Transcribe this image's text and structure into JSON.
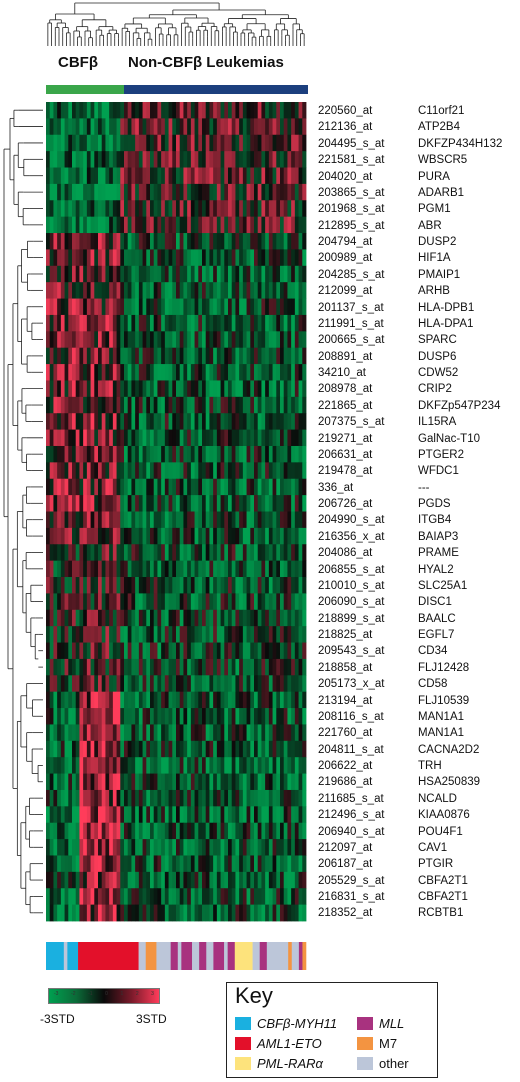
{
  "header": {
    "group_left": "CBFβ",
    "group_right": "Non-CBFβ Leukemias"
  },
  "colors": {
    "green": "#00a050",
    "red": "#ff3c5a",
    "black": "#0a0a0a",
    "group_bar_green": "#3aa64a",
    "group_bar_blue": "#1c3f7e",
    "cbfb_myh11": "#1ab0e0",
    "aml1_eto": "#e3102a",
    "pml_rara": "#fde37c",
    "mll": "#a8327f",
    "m7": "#f39441",
    "other": "#bcc6d9"
  },
  "rows": [
    {
      "probe": "220560_at",
      "gene": "C11orf21",
      "pattern": "up_noncbf"
    },
    {
      "probe": "212136_at",
      "gene": "ATP2B4",
      "pattern": "up_noncbf"
    },
    {
      "probe": "204495_s_at",
      "gene": "DKFZP434H132",
      "pattern": "up_noncbf"
    },
    {
      "probe": "221581_s_at",
      "gene": "WBSCR5",
      "pattern": "up_noncbf"
    },
    {
      "probe": "204020_at",
      "gene": "PURA",
      "pattern": "up_noncbf"
    },
    {
      "probe": "203865_s_at",
      "gene": "ADARB1",
      "pattern": "up_noncbf"
    },
    {
      "probe": "201968_s_at",
      "gene": "PGM1",
      "pattern": "up_noncbf"
    },
    {
      "probe": "212895_s_at",
      "gene": "ABR",
      "pattern": "up_noncbf"
    },
    {
      "probe": "204794_at",
      "gene": "DUSP2",
      "pattern": "up_cbf"
    },
    {
      "probe": "200989_at",
      "gene": "HIF1A",
      "pattern": "up_cbf"
    },
    {
      "probe": "204285_s_at",
      "gene": "PMAIP1",
      "pattern": "up_cbf"
    },
    {
      "probe": "212099_at",
      "gene": "ARHB",
      "pattern": "up_cbf"
    },
    {
      "probe": "201137_s_at",
      "gene": "HLA-DPB1",
      "pattern": "up_cbf"
    },
    {
      "probe": "211991_s_at",
      "gene": "HLA-DPA1",
      "pattern": "up_cbf"
    },
    {
      "probe": "200665_s_at",
      "gene": "SPARC",
      "pattern": "up_cbf"
    },
    {
      "probe": "208891_at",
      "gene": "DUSP6",
      "pattern": "up_cbf"
    },
    {
      "probe": "34210_at",
      "gene": "CDW52",
      "pattern": "up_cbf"
    },
    {
      "probe": "208978_at",
      "gene": "CRIP2",
      "pattern": "up_cbf"
    },
    {
      "probe": "221865_at",
      "gene": "DKFZp547P234",
      "pattern": "up_cbf"
    },
    {
      "probe": "207375_s_at",
      "gene": "IL15RA",
      "pattern": "up_cbf"
    },
    {
      "probe": "219271_at",
      "gene": "GalNac-T10",
      "pattern": "up_cbf"
    },
    {
      "probe": "206631_at",
      "gene": "PTGER2",
      "pattern": "up_cbf"
    },
    {
      "probe": "219478_at",
      "gene": "WFDC1",
      "pattern": "up_cbf"
    },
    {
      "probe": "336_at",
      "gene": "---",
      "pattern": "up_cbf"
    },
    {
      "probe": "206726_at",
      "gene": "PGDS",
      "pattern": "up_cbf"
    },
    {
      "probe": "204990_s_at",
      "gene": "ITGB4",
      "pattern": "up_cbf"
    },
    {
      "probe": "216356_x_at",
      "gene": "BAIAP3",
      "pattern": "up_cbf"
    },
    {
      "probe": "204086_at",
      "gene": "PRAME",
      "pattern": "mid"
    },
    {
      "probe": "206855_s_at",
      "gene": "HYAL2",
      "pattern": "mid"
    },
    {
      "probe": "210010_s_at",
      "gene": "SLC25A1",
      "pattern": "mid"
    },
    {
      "probe": "206090_s_at",
      "gene": "DISC1",
      "pattern": "mid"
    },
    {
      "probe": "218899_s_at",
      "gene": "BAALC",
      "pattern": "mid"
    },
    {
      "probe": "218825_at",
      "gene": "EGFL7",
      "pattern": "mid"
    },
    {
      "probe": "209543_s_at",
      "gene": "CD34",
      "pattern": "mid"
    },
    {
      "probe": "218858_at",
      "gene": "FLJ12428",
      "pattern": "mid"
    },
    {
      "probe": "205173_x_at",
      "gene": "CD58",
      "pattern": "mid"
    },
    {
      "probe": "213194_at",
      "gene": "FLJ10539",
      "pattern": "eto"
    },
    {
      "probe": "208116_s_at",
      "gene": "MAN1A1",
      "pattern": "eto"
    },
    {
      "probe": "221760_at",
      "gene": "MAN1A1",
      "pattern": "eto"
    },
    {
      "probe": "204811_s_at",
      "gene": "CACNA2D2",
      "pattern": "eto"
    },
    {
      "probe": "206622_at",
      "gene": "TRH",
      "pattern": "eto"
    },
    {
      "probe": "219686_at",
      "gene": "HSA250839",
      "pattern": "eto"
    },
    {
      "probe": "211685_s_at",
      "gene": "NCALD",
      "pattern": "eto"
    },
    {
      "probe": "212496_s_at",
      "gene": "KIAA0876",
      "pattern": "eto"
    },
    {
      "probe": "206940_s_at",
      "gene": "POU4F1",
      "pattern": "eto"
    },
    {
      "probe": "212097_at",
      "gene": "CAV1",
      "pattern": "eto"
    },
    {
      "probe": "206187_at",
      "gene": "PTGIR",
      "pattern": "eto"
    },
    {
      "probe": "205529_s_at",
      "gene": "CBFA2T1",
      "pattern": "eto"
    },
    {
      "probe": "216831_s_at",
      "gene": "CBFA2T1",
      "pattern": "eto"
    },
    {
      "probe": "218352_at",
      "gene": "RCBTB1",
      "pattern": "eto"
    }
  ],
  "subtype_bar": [
    {
      "type": "cbfb_myh11",
      "count": 5
    },
    {
      "type": "other",
      "count": 1
    },
    {
      "type": "cbfb_myh11",
      "count": 3
    },
    {
      "type": "aml1_eto",
      "count": 17
    },
    {
      "type": "other",
      "count": 2
    },
    {
      "type": "m7",
      "count": 3
    },
    {
      "type": "other",
      "count": 4
    },
    {
      "type": "mll",
      "count": 2
    },
    {
      "type": "other",
      "count": 1
    },
    {
      "type": "mll",
      "count": 3
    },
    {
      "type": "other",
      "count": 2
    },
    {
      "type": "mll",
      "count": 2
    },
    {
      "type": "other",
      "count": 2
    },
    {
      "type": "mll",
      "count": 3
    },
    {
      "type": "other",
      "count": 1
    },
    {
      "type": "mll",
      "count": 2
    },
    {
      "type": "pml_rara",
      "count": 5
    },
    {
      "type": "other",
      "count": 2
    },
    {
      "type": "mll",
      "count": 2
    },
    {
      "type": "other",
      "count": 6
    },
    {
      "type": "m7",
      "count": 1
    },
    {
      "type": "other",
      "count": 2
    },
    {
      "type": "mll",
      "count": 1
    },
    {
      "type": "m7",
      "count": 1
    }
  ],
  "scale": {
    "low_label": "-3STD",
    "high_label": "3STD",
    "ticks": [
      "-3",
      "-2",
      "-1",
      "0",
      "1",
      "2",
      "3"
    ]
  },
  "key": {
    "title": "Key",
    "items": [
      {
        "label": "CBFβ-MYH11",
        "color_key": "cbfb_myh11",
        "italic": true
      },
      {
        "label": "AML1-ETO",
        "color_key": "aml1_eto",
        "italic": true
      },
      {
        "label": "PML-RARα",
        "color_key": "pml_rara",
        "italic": true
      },
      {
        "label": "MLL",
        "color_key": "mll",
        "italic": true
      },
      {
        "label": "M7",
        "color_key": "m7",
        "italic": false
      },
      {
        "label": "other",
        "color_key": "other",
        "italic": false
      }
    ]
  }
}
